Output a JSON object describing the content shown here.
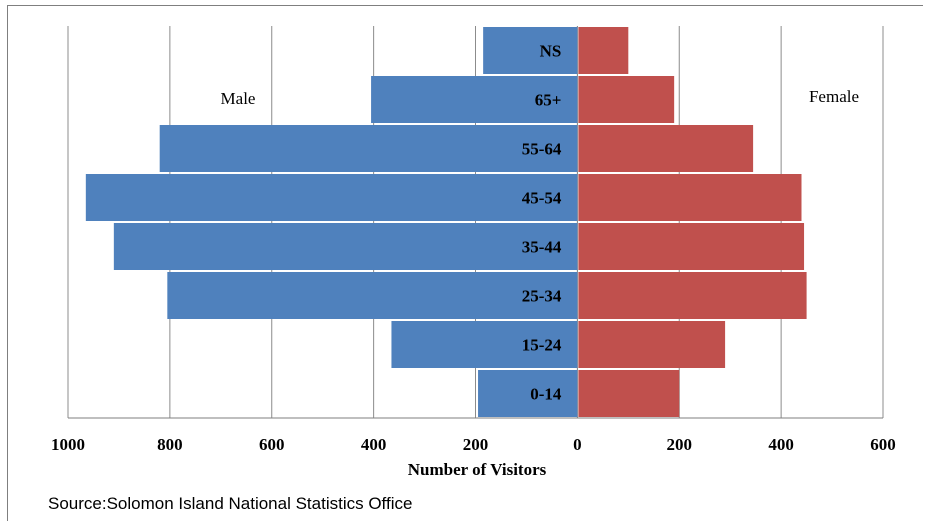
{
  "chart_data": {
    "type": "bar",
    "orientation": "horizontal-pyramid",
    "categories": [
      "0-14",
      "15-24",
      "25-34",
      "35-44",
      "45-54",
      "55-64",
      "65+",
      "NS"
    ],
    "series": [
      {
        "name": "Male",
        "values": [
          195,
          365,
          805,
          910,
          965,
          820,
          405,
          185
        ],
        "color": "#4f81bd"
      },
      {
        "name": "Female",
        "values": [
          200,
          290,
          450,
          445,
          440,
          345,
          190,
          100
        ],
        "color": "#c0504d"
      }
    ],
    "x_ticks": [
      "1000",
      "800",
      "600",
      "400",
      "200",
      "0",
      "200",
      "400",
      "600"
    ],
    "xlim": [
      -1000,
      600
    ],
    "xlabel": "Number of Visitors",
    "grid": "vertical",
    "source": "Source:Solomon Island National Statistics Office"
  }
}
